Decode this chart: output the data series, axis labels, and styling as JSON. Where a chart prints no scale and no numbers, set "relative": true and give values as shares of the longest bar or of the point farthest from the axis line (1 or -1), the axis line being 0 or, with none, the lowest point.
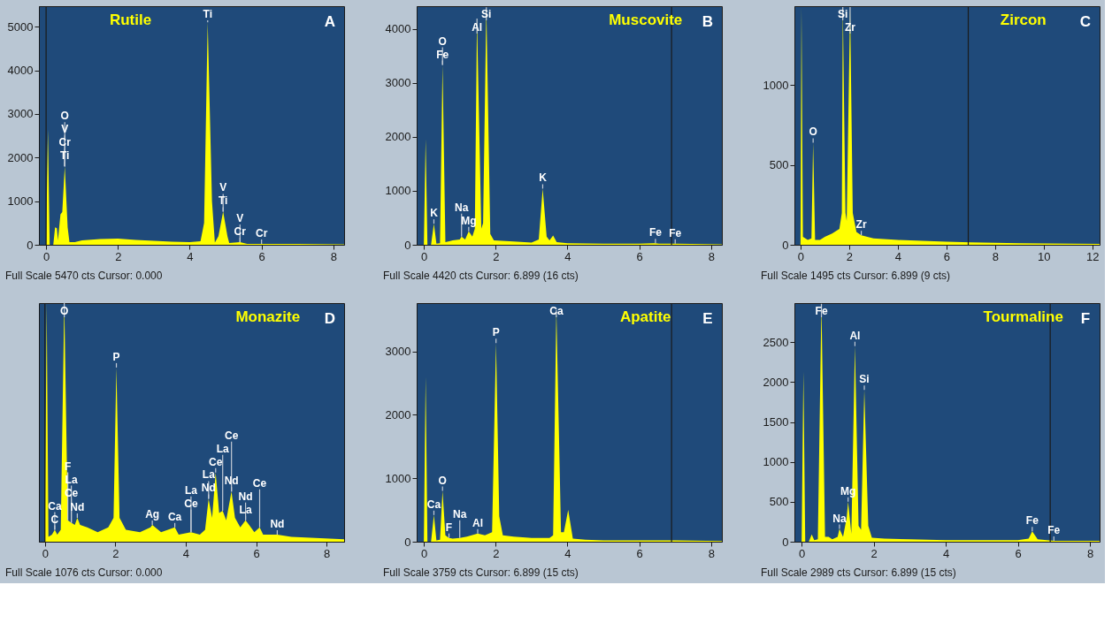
{
  "chart_data": [
    {
      "type": "area",
      "title": "Rutile",
      "xlim": [
        -0.2,
        8.3
      ],
      "xticks": [
        0,
        2,
        4,
        6,
        8
      ],
      "ylim": [
        0,
        5470
      ],
      "yticks": [
        0,
        1000,
        2000,
        3000,
        4000,
        5000
      ],
      "x": [
        -0.2,
        0,
        0.05,
        0.1,
        0.2,
        0.25,
        0.3,
        0.33,
        0.4,
        0.45,
        0.52,
        0.6,
        0.65,
        0.8,
        1.0,
        1.5,
        2.0,
        2.5,
        3.0,
        3.5,
        4.0,
        4.3,
        4.4,
        4.5,
        4.62,
        4.7,
        4.8,
        4.93,
        5.05,
        5.1,
        5.4,
        5.45,
        5.6,
        6.0,
        7.0,
        8.3
      ],
      "series": [
        {
          "color": "#ffff00",
          "values": [
            0,
            0,
            2650,
            0,
            0,
            400,
            380,
            100,
            700,
            750,
            1800,
            400,
            60,
            60,
            100,
            130,
            140,
            110,
            90,
            70,
            60,
            80,
            500,
            5100,
            1000,
            50,
            200,
            760,
            200,
            40,
            60,
            50,
            20,
            20,
            20,
            10
          ]
        }
      ],
      "ref_lines": [
        {
          "axis": "x",
          "value": 0,
          "color": "#1a1a1a"
        }
      ],
      "annotations": [
        {
          "text": "O",
          "x": 0.52,
          "y": 1800
        },
        {
          "text": "V",
          "x": 0.52,
          "y": 1800
        },
        {
          "text": "Cr",
          "x": 0.52,
          "y": 1800
        },
        {
          "text": "Ti",
          "x": 0.52,
          "y": 1800
        },
        {
          "text": "Ti",
          "x": 4.5,
          "y": 5100
        },
        {
          "text": "V",
          "x": 4.93,
          "y": 760
        },
        {
          "text": "Ti",
          "x": 4.93,
          "y": 760
        },
        {
          "text": "V",
          "x": 5.4,
          "y": 60
        },
        {
          "text": "Cr",
          "x": 5.4,
          "y": 60
        },
        {
          "text": "Cr",
          "x": 6.0,
          "y": 20
        },
        "A",
        "Full Scale 5470 cts Cursor: 0.000"
      ]
    },
    {
      "type": "area",
      "title": "Muscovite",
      "xlim": [
        -0.2,
        8.3
      ],
      "xticks": [
        0,
        2,
        4,
        6,
        8
      ],
      "ylim": [
        0,
        4420
      ],
      "yticks": [
        0,
        1000,
        2000,
        3000,
        4000
      ],
      "x": [
        -0.2,
        0,
        0.05,
        0.1,
        0.2,
        0.28,
        0.35,
        0.45,
        0.52,
        0.6,
        0.8,
        1.0,
        1.05,
        1.15,
        1.25,
        1.35,
        1.42,
        1.48,
        1.6,
        1.65,
        1.74,
        1.85,
        1.95,
        2.5,
        3.0,
        3.2,
        3.31,
        3.42,
        3.5,
        3.6,
        3.7,
        4.0,
        5.0,
        6.0,
        6.4,
        6.45,
        6.55,
        7.0,
        8.3
      ],
      "series": [
        {
          "color": "#ffff00",
          "values": [
            0,
            0,
            1960,
            0,
            0,
            390,
            20,
            30,
            3330,
            50,
            80,
            100,
            150,
            100,
            250,
            150,
            300,
            4190,
            300,
            400,
            4400,
            200,
            80,
            60,
            40,
            100,
            1040,
            150,
            80,
            170,
            50,
            30,
            20,
            20,
            30,
            30,
            20,
            20,
            10
          ]
        }
      ],
      "ref_lines": [
        {
          "axis": "x",
          "value": 6.899,
          "color": "#1a1a1a"
        }
      ],
      "annotations": [
        {
          "text": "O",
          "x": 0.52,
          "y": 3330
        },
        {
          "text": "Fe",
          "x": 0.52,
          "y": 3330
        },
        {
          "text": "Si",
          "x": 1.74,
          "y": 4400
        },
        {
          "text": "Al",
          "x": 1.48,
          "y": 4190
        },
        {
          "text": "Mg",
          "x": 1.25,
          "y": 250
        },
        {
          "text": "K",
          "x": 0.28,
          "y": 390
        },
        {
          "text": "Na",
          "x": 1.05,
          "y": 150
        },
        {
          "text": "K",
          "x": 3.31,
          "y": 1040
        },
        {
          "text": "Fe",
          "x": 6.45,
          "y": 30
        },
        {
          "text": "Fe",
          "x": 7.0,
          "y": 20
        },
        "B",
        "Full Scale 4420 cts Cursor: 6.899  (16 cts)"
      ]
    },
    {
      "type": "area",
      "title": "Zircon",
      "xlim": [
        -0.25,
        12.3
      ],
      "xticks": [
        0,
        2,
        4,
        6,
        8,
        10,
        12
      ],
      "ylim": [
        0,
        1495
      ],
      "yticks": [
        0,
        500,
        1000
      ],
      "x": [
        -0.25,
        0,
        0.04,
        0.1,
        0.2,
        0.3,
        0.45,
        0.52,
        0.6,
        0.8,
        1.0,
        1.3,
        1.6,
        1.7,
        1.74,
        1.85,
        1.9,
        2.04,
        2.15,
        2.3,
        2.5,
        3.0,
        4.0,
        5.0,
        6.0,
        7.0,
        8.0,
        9.0,
        10.0,
        12.3
      ],
      "series": [
        {
          "color": "#ffff00",
          "values": [
            0,
            0,
            1490,
            50,
            40,
            30,
            40,
            640,
            30,
            30,
            50,
            70,
            100,
            200,
            1490,
            200,
            150,
            1490,
            200,
            80,
            60,
            40,
            30,
            25,
            20,
            15,
            12,
            10,
            8,
            5
          ]
        }
      ],
      "ref_lines": [
        {
          "axis": "x",
          "value": 6.899,
          "color": "#1a1a1a"
        }
      ],
      "annotations": [
        {
          "text": "Si",
          "x": 1.74,
          "y": 1490
        },
        {
          "text": "Zr",
          "x": 2.04,
          "y": 1490
        },
        {
          "text": "O",
          "x": 0.52,
          "y": 640
        },
        {
          "text": "Zr",
          "x": 2.5,
          "y": 60
        },
        "C",
        "Full Scale 1495 cts Cursor: 6.899  (9 cts)"
      ]
    },
    {
      "type": "area",
      "title": "Monazite",
      "relative": true,
      "tick_labels": "x",
      "xlim": [
        -0.17,
        8.5
      ],
      "xticks": [
        0,
        2,
        4,
        6,
        8
      ],
      "x": [
        -0.17,
        0,
        0.05,
        0.1,
        0.2,
        0.28,
        0.35,
        0.45,
        0.55,
        0.65,
        0.75,
        0.85,
        0.92,
        1.0,
        1.2,
        1.5,
        1.8,
        1.95,
        2.03,
        2.12,
        2.3,
        2.7,
        3.0,
        3.05,
        3.3,
        3.69,
        3.8,
        4.15,
        4.4,
        4.55,
        4.65,
        4.75,
        4.85,
        4.95,
        5.05,
        5.15,
        5.3,
        5.4,
        5.55,
        5.7,
        5.8,
        5.95,
        6.1,
        6.2,
        6.6,
        7.0,
        8.5
      ],
      "series": [
        {
          "color": "#ffff00",
          "values": [
            0,
            0,
            1,
            0.02,
            0.03,
            0.05,
            0.03,
            0.05,
            1,
            0.09,
            0.08,
            0.07,
            0.1,
            0.07,
            0.06,
            0.04,
            0.06,
            0.1,
            0.73,
            0.1,
            0.05,
            0.04,
            0.06,
            0.07,
            0.04,
            0.06,
            0.03,
            0.04,
            0.03,
            0.05,
            0.18,
            0.1,
            0.29,
            0.12,
            0.13,
            0.09,
            0.21,
            0.1,
            0.06,
            0.09,
            0.07,
            0.04,
            0.06,
            0.03,
            0.03,
            0.02,
            0.01
          ]
        }
      ],
      "ref_lines": [
        {
          "axis": "x",
          "value": 0,
          "color": "#1a1a1a"
        }
      ],
      "annotations": [
        {
          "text": "O",
          "x": 0.55,
          "y": 1
        },
        {
          "text": "P",
          "x": 2.03,
          "y": 0.73
        },
        {
          "text": "Ca",
          "x": 0.28,
          "y": 0.05
        },
        {
          "text": "C",
          "x": 0.28,
          "y": 0.05
        },
        {
          "text": "Ce",
          "x": 0.75,
          "y": 0.08
        },
        {
          "text": "La",
          "x": 0.75,
          "y": 0.08
        },
        {
          "text": "F",
          "x": 0.65,
          "y": 0.09
        },
        {
          "text": "Nd",
          "x": 0.92,
          "y": 0.1
        },
        {
          "text": "Ag",
          "x": 3.05,
          "y": 0.07
        },
        {
          "text": "Ca",
          "x": 3.69,
          "y": 0.06
        },
        {
          "text": "Ce",
          "x": 4.15,
          "y": 0.04
        },
        {
          "text": "La",
          "x": 4.15,
          "y": 0.04
        },
        {
          "text": "La",
          "x": 4.65,
          "y": 0.18
        },
        {
          "text": "Nd",
          "x": 4.65,
          "y": 0.18
        },
        {
          "text": "Ce",
          "x": 4.85,
          "y": 0.29
        },
        {
          "text": "La",
          "x": 5.05,
          "y": 0.13
        },
        {
          "text": "Ce",
          "x": 5.3,
          "y": 0.21
        },
        {
          "text": "Nd",
          "x": 5.3,
          "y": 0.21
        },
        {
          "text": "Nd",
          "x": 5.7,
          "y": 0.09
        },
        {
          "text": "La",
          "x": 5.7,
          "y": 0.09
        },
        {
          "text": "Ce",
          "x": 6.1,
          "y": 0.06
        },
        {
          "text": "Nd",
          "x": 6.6,
          "y": 0.03
        },
        "D",
        "Full Scale 1076 cts Cursor: 0.000"
      ]
    },
    {
      "type": "area",
      "title": "Apatite",
      "xlim": [
        -0.2,
        8.3
      ],
      "xticks": [
        0,
        2,
        4,
        6,
        8
      ],
      "ylim": [
        0,
        3759
      ],
      "yticks": [
        0,
        1000,
        2000,
        3000
      ],
      "x": [
        -0.2,
        0,
        0.05,
        0.1,
        0.2,
        0.28,
        0.35,
        0.45,
        0.52,
        0.6,
        0.7,
        0.8,
        1.0,
        1.2,
        1.5,
        1.7,
        1.9,
        2.01,
        2.1,
        2.2,
        2.5,
        3.0,
        3.5,
        3.6,
        3.69,
        3.82,
        3.9,
        4.02,
        4.15,
        4.5,
        5.0,
        6.0,
        7.0,
        8.3
      ],
      "series": [
        {
          "color": "#ffff00",
          "values": [
            0,
            0,
            2600,
            0,
            0,
            420,
            20,
            30,
            800,
            100,
            60,
            50,
            60,
            80,
            130,
            100,
            150,
            3130,
            400,
            100,
            80,
            60,
            60,
            100,
            3650,
            150,
            150,
            500,
            50,
            30,
            20,
            20,
            20,
            10
          ]
        }
      ],
      "ref_lines": [
        {
          "axis": "x",
          "value": 6.899,
          "color": "#1a1a1a"
        }
      ],
      "annotations": [
        {
          "text": "Ca",
          "x": 3.69,
          "y": 3650
        },
        {
          "text": "P",
          "x": 2.01,
          "y": 3130
        },
        {
          "text": "O",
          "x": 0.52,
          "y": 800
        },
        {
          "text": "Ca",
          "x": 0.28,
          "y": 420
        },
        {
          "text": "F",
          "x": 0.7,
          "y": 60
        },
        {
          "text": "Na",
          "x": 1.0,
          "y": 60
        },
        {
          "text": "Al",
          "x": 1.5,
          "y": 130
        },
        "E",
        "Full Scale 3759 cts Cursor: 6.899  (15 cts)"
      ]
    },
    {
      "type": "area",
      "title": "Tourmaline",
      "xlim": [
        -0.2,
        8.27
      ],
      "xticks": [
        0,
        2,
        4,
        6,
        8
      ],
      "ylim": [
        0,
        2989
      ],
      "yticks": [
        0,
        500,
        1000,
        1500,
        2000,
        2500
      ],
      "x": [
        -0.2,
        0,
        0.05,
        0.1,
        0.2,
        0.28,
        0.35,
        0.45,
        0.55,
        0.65,
        0.75,
        0.85,
        1.0,
        1.05,
        1.15,
        1.25,
        1.29,
        1.38,
        1.48,
        1.58,
        1.65,
        1.74,
        1.85,
        1.95,
        2.3,
        3.0,
        4.0,
        5.0,
        6.0,
        6.3,
        6.4,
        6.55,
        7.0,
        8.27
      ],
      "series": [
        {
          "color": "#ffff00",
          "values": [
            0,
            0,
            2130,
            0,
            0,
            90,
            20,
            30,
            2980,
            60,
            60,
            30,
            60,
            160,
            60,
            300,
            500,
            100,
            2450,
            200,
            150,
            1900,
            200,
            50,
            40,
            30,
            20,
            20,
            20,
            40,
            130,
            30,
            10,
            10
          ]
        }
      ],
      "ref_lines": [
        {
          "axis": "x",
          "value": 6.899,
          "color": "#1a1a1a"
        }
      ],
      "annotations": [
        {
          "text": "Fe",
          "x": 0.55,
          "y": 2980
        },
        {
          "text": "Al",
          "x": 1.48,
          "y": 2450
        },
        {
          "text": "Si",
          "x": 1.74,
          "y": 1900
        },
        {
          "text": "Mg",
          "x": 1.29,
          "y": 500
        },
        {
          "text": "Na",
          "x": 1.05,
          "y": 160
        },
        {
          "text": "Fe",
          "x": 6.4,
          "y": 130
        },
        {
          "text": "Fe",
          "x": 7.0,
          "y": 10
        },
        "F",
        "Full Scale 2989 cts Cursor: 6.899  (15 cts)"
      ]
    }
  ]
}
